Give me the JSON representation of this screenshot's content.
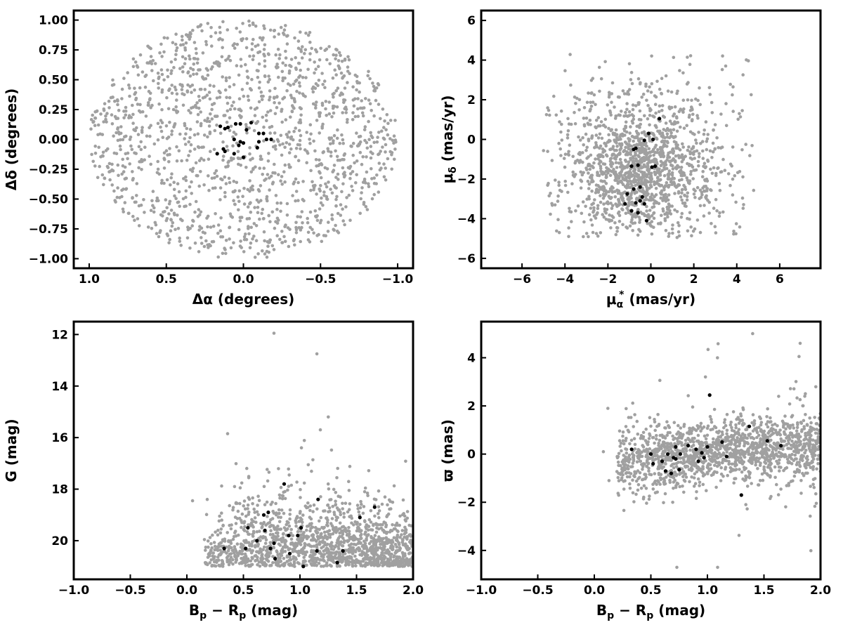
{
  "colors": {
    "field": "#a0a0a0",
    "member": "#000000",
    "frame": "#000000",
    "background": "#ffffff"
  },
  "chart_data": [
    {
      "id": "sky",
      "type": "scatter",
      "xlabel": "Δα (degrees)",
      "ylabel": "Δδ (degrees)",
      "xlim": [
        1.1,
        -1.1
      ],
      "ylim": [
        -1.08,
        1.08
      ],
      "xticks": [
        1.0,
        0.5,
        0.0,
        -0.5,
        -1.0
      ],
      "xtick_labels": [
        "1.0",
        "0.5",
        "0.0",
        "−0.5",
        "−1.0"
      ],
      "yticks": [
        1.0,
        0.75,
        0.5,
        0.25,
        0.0,
        -0.25,
        -0.5,
        -0.75,
        -1.0
      ],
      "ytick_labels": [
        "1.00",
        "0.75",
        "0.50",
        "0.25",
        "0.00",
        "−0.25",
        "−0.50",
        "−0.75",
        "−1.00"
      ],
      "grid": false,
      "field_distribution": {
        "shape": "disk",
        "center": [
          0.0,
          0.0
        ],
        "radius": 1.0,
        "approx_count": 1500
      },
      "members": {
        "x": [
          0.15,
          0.12,
          0.1,
          0.02,
          -0.05,
          0.06,
          0.0,
          0.03,
          -0.09,
          -0.13,
          0.17,
          0.13,
          0.12,
          -0.15,
          0.0,
          -0.02,
          0.05,
          -0.1,
          -0.18,
          -0.1,
          0.06,
          0.02
        ],
        "y": [
          0.11,
          0.09,
          0.1,
          0.13,
          0.14,
          0.0,
          -0.03,
          -0.05,
          -0.07,
          0.05,
          -0.12,
          -0.08,
          -0.1,
          0.0,
          -0.15,
          0.08,
          0.13,
          -0.02,
          0.0,
          0.05,
          -0.12,
          -0.02
        ]
      }
    },
    {
      "id": "proper-motion",
      "type": "scatter",
      "xlabel": "μ",
      "xlabel_sub": "α",
      "xlabel_sup": "*",
      "xlabel_unit": "(mas/yr)",
      "ylabel": "μ",
      "ylabel_sub": "δ",
      "ylabel_unit": "(mas/yr)",
      "xlim": [
        -7.9,
        7.9
      ],
      "ylim": [
        -6.5,
        6.5
      ],
      "xticks": [
        -6,
        -4,
        -2,
        0,
        2,
        4,
        6
      ],
      "xtick_labels": [
        "−6",
        "−4",
        "−2",
        "0",
        "2",
        "4",
        "6"
      ],
      "yticks": [
        6,
        4,
        2,
        0,
        -2,
        -4,
        -6
      ],
      "ytick_labels": [
        "6",
        "4",
        "2",
        "0",
        "−2",
        "−4",
        "−6"
      ],
      "grid": false,
      "field_distribution": {
        "shape": "cloud",
        "center": [
          -0.3,
          -1.5
        ],
        "x_range": [
          -5.0,
          4.8
        ],
        "y_range": [
          -5.0,
          4.4
        ],
        "approx_count": 1500
      },
      "members": {
        "x": [
          0.4,
          -0.1,
          0.1,
          -0.3,
          0.2,
          -0.7,
          -0.9,
          -0.6,
          0.05,
          -1.1,
          -0.5,
          -0.8,
          -0.7,
          -0.3,
          -0.9,
          -0.6,
          -1.2,
          -0.2,
          -0.8,
          -0.5,
          -0.4
        ],
        "y": [
          1.05,
          0.3,
          0.0,
          -0.05,
          -1.35,
          -0.45,
          -1.35,
          -1.3,
          -1.4,
          -2.75,
          -2.4,
          -2.5,
          -3.2,
          -3.25,
          -3.6,
          -3.7,
          -3.25,
          -4.1,
          -0.5,
          -3.1,
          -2.9
        ]
      }
    },
    {
      "id": "cmd",
      "type": "scatter",
      "xlabel": "B",
      "xlabel_sub1": "p",
      "xlabel_mid": " − R",
      "xlabel_sub2": "p",
      "xlabel_unit": " (mag)",
      "ylabel": "G (mag)",
      "xlim": [
        -1.0,
        2.0
      ],
      "ylim": [
        21.5,
        11.5
      ],
      "xticks": [
        -1.0,
        -0.5,
        0.0,
        0.5,
        1.0,
        1.5,
        2.0
      ],
      "xtick_labels": [
        "−1.0",
        "−0.5",
        "0.0",
        "0.5",
        "1.0",
        "1.5",
        "2.0"
      ],
      "yticks": [
        20,
        18,
        16,
        14,
        12
      ],
      "ytick_labels": [
        "20",
        "18",
        "16",
        "14",
        "12"
      ],
      "grid": false,
      "field_distribution": {
        "shape": "band",
        "x_range": [
          0.1,
          2.0
        ],
        "y_range": [
          11.9,
          21.0
        ],
        "approx_count": 1500
      },
      "members": {
        "x": [
          0.33,
          0.52,
          0.54,
          0.62,
          0.69,
          0.68,
          0.72,
          0.74,
          0.77,
          0.78,
          0.9,
          0.91,
          0.98,
          1.01,
          1.15,
          1.16,
          1.33,
          1.38,
          1.53,
          1.66,
          0.86,
          1.03
        ],
        "y": [
          20.3,
          20.3,
          19.5,
          20.0,
          19.6,
          19.0,
          18.9,
          20.3,
          20.1,
          20.7,
          19.8,
          20.5,
          19.8,
          19.5,
          20.4,
          18.4,
          20.85,
          20.4,
          19.1,
          18.7,
          17.8,
          21.0
        ]
      }
    },
    {
      "id": "parallax",
      "type": "scatter",
      "xlabel": "B",
      "xlabel_sub1": "p",
      "xlabel_mid": " − R",
      "xlabel_sub2": "p",
      "xlabel_unit": " (mag)",
      "ylabel": "ϖ (mas)",
      "xlim": [
        -1.0,
        2.0
      ],
      "ylim": [
        -5.2,
        5.5
      ],
      "xticks": [
        -1.0,
        -0.5,
        0.0,
        0.5,
        1.0,
        1.5,
        2.0
      ],
      "xtick_labels": [
        "−1.0",
        "−0.5",
        "0.0",
        "0.5",
        "1.0",
        "1.5",
        "2.0"
      ],
      "yticks": [
        4,
        2,
        0,
        -2,
        -4
      ],
      "ytick_labels": [
        "4",
        "2",
        "0",
        "−2",
        "−4"
      ],
      "grid": false,
      "field_distribution": {
        "shape": "band",
        "x_range": [
          0.05,
          2.0
        ],
        "y_range": [
          -4.7,
          5.0
        ],
        "approx_count": 1500
      },
      "members": {
        "x": [
          0.33,
          0.5,
          0.52,
          0.6,
          0.63,
          0.65,
          0.68,
          0.7,
          0.72,
          0.75,
          0.76,
          0.83,
          0.9,
          0.92,
          0.95,
          0.97,
          1.0,
          1.02,
          1.13,
          1.17,
          1.3,
          1.37,
          1.53,
          1.65,
          0.72
        ],
        "y": [
          0.2,
          0.0,
          -0.4,
          -0.3,
          -0.7,
          0.0,
          -0.8,
          -0.15,
          0.3,
          -0.65,
          0.0,
          0.35,
          0.2,
          -0.3,
          0.05,
          -0.15,
          0.3,
          2.45,
          0.5,
          -0.1,
          -1.7,
          1.15,
          0.55,
          0.35,
          -0.2
        ]
      }
    }
  ]
}
